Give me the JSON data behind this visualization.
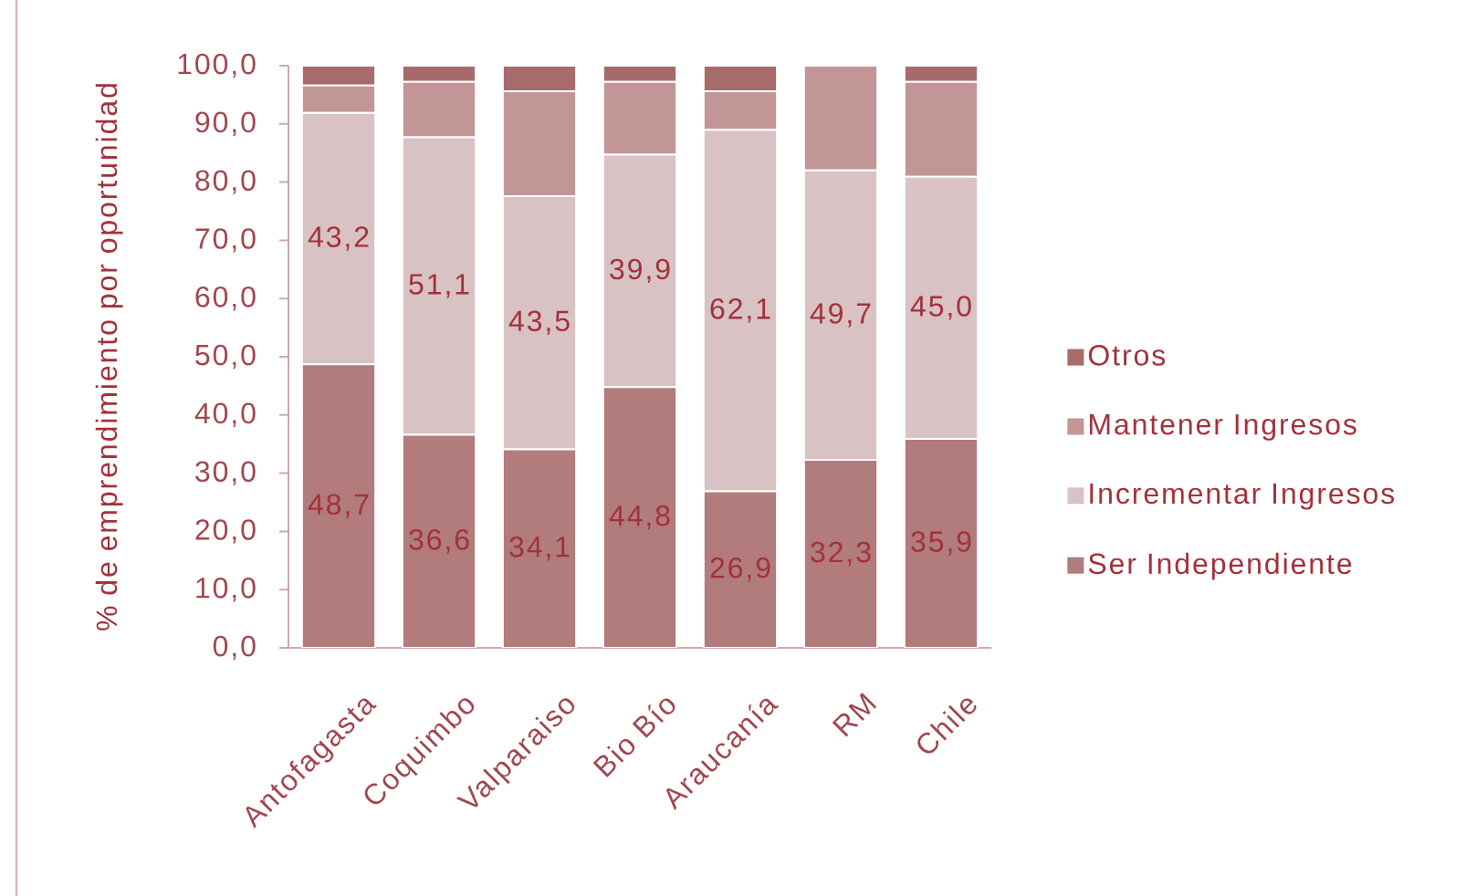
{
  "chart_data": {
    "type": "bar",
    "stacked": true,
    "ylabel": "% de emprendimiento por oportunidad",
    "categories": [
      "Antofagasta",
      "Coquimbo",
      "Valparaiso",
      "Bio Bío",
      "Araucanía",
      "RM",
      "Chile"
    ],
    "series": [
      {
        "name": "Ser Independiente",
        "color": "#b27b7c",
        "values": [
          48.7,
          36.6,
          34.1,
          44.8,
          26.9,
          32.3,
          35.9
        ],
        "value_labels": [
          "48,7",
          "36,6",
          "34,1",
          "44,8",
          "26,9",
          "32,3",
          "35,9"
        ]
      },
      {
        "name": "Incrementar Ingresos",
        "color": "#d9c2c3",
        "values": [
          43.2,
          51.1,
          43.5,
          39.9,
          62.1,
          49.7,
          45.0
        ],
        "value_labels": [
          "43,2",
          "51,1",
          "43,5",
          "39,9",
          "62,1",
          "49,7",
          "45,0"
        ]
      },
      {
        "name": "Mantener Ingresos",
        "color": "#c29597",
        "values": [
          4.7,
          9.5,
          18.0,
          12.5,
          6.6,
          18.0,
          16.3
        ]
      },
      {
        "name": "Otros",
        "color": "#a86b6c",
        "values": [
          3.4,
          2.8,
          4.4,
          2.8,
          4.4,
          0,
          2.8
        ]
      }
    ],
    "ylim": [
      0,
      100
    ],
    "yticks": [
      {
        "value": 0,
        "label": "0,0"
      },
      {
        "value": 10,
        "label": "10,0"
      },
      {
        "value": 20,
        "label": "20,0"
      },
      {
        "value": 30,
        "label": "30,0"
      },
      {
        "value": 40,
        "label": "40,0"
      },
      {
        "value": 50,
        "label": "50,0"
      },
      {
        "value": 60,
        "label": "60,0"
      },
      {
        "value": 70,
        "label": "70,0"
      },
      {
        "value": 80,
        "label": "80,0"
      },
      {
        "value": 90,
        "label": "90,0"
      },
      {
        "value": 100,
        "label": "100,0"
      }
    ],
    "legend": "right"
  }
}
